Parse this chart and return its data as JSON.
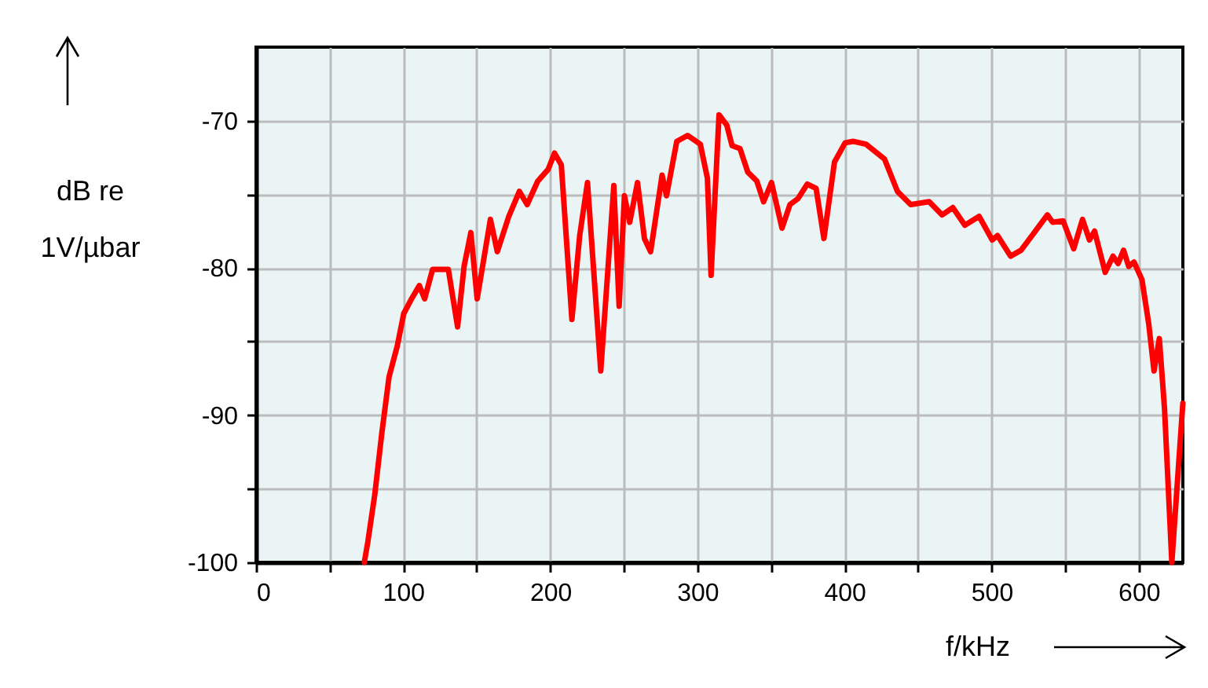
{
  "chart_data": {
    "type": "line",
    "xlabel": "f/kHz",
    "ylabel": "dB re\n1V/µbar",
    "grid": true,
    "marker": "none",
    "line_style": "solid",
    "xlim": [
      0,
      630
    ],
    "ylim": [
      -100,
      -65
    ],
    "xticks": [
      0,
      {
        "value": 50,
        "label": null
      },
      100,
      {
        "value": 150,
        "label": null
      },
      200,
      {
        "value": 250,
        "label": null
      },
      300,
      {
        "value": 350,
        "label": null
      },
      400,
      {
        "value": 450,
        "label": null
      },
      500,
      {
        "value": 550,
        "label": null
      },
      600
    ],
    "yticks": [
      -100,
      {
        "value": -95,
        "label": null
      },
      -90,
      {
        "value": -85,
        "label": null
      },
      -80,
      {
        "value": -75,
        "label": null
      },
      -70
    ],
    "series": [
      {
        "color": "#ff0000",
        "x": [
          73.6,
          76,
          80.7,
          85.4,
          90.4,
          96,
          100.4,
          105.7,
          111,
          114.6,
          120,
          130.7,
          137,
          141.4,
          146,
          150.3,
          159.3,
          164,
          171.8,
          179,
          184.3,
          191.5,
          198.6,
          202.9,
          207.5,
          214.7,
          220,
          225.3,
          234.3,
          243.2,
          246.8,
          250.4,
          254,
          259.3,
          264,
          268.2,
          276,
          279,
          286,
          293.3,
          302,
          306.8,
          309.3,
          314.7,
          320,
          323.6,
          329,
          334.3,
          340.4,
          345,
          350.4,
          357.5,
          362.9,
          368.3,
          374.7,
          380.7,
          386,
          393.2,
          400.4,
          405.8,
          414.7,
          427.2,
          436,
          445,
          457.5,
          466.4,
          473.6,
          481.8,
          491.5,
          500.4,
          504,
          512.9,
          520,
          529,
          537.9,
          541.5,
          548.6,
          555.8,
          561.8,
          566.5,
          570,
          577.2,
          582.5,
          586,
          589.7,
          593.2,
          596.8,
          602.2,
          606.8,
          610.4,
          614,
          617.5,
          622.5,
          630
        ],
        "values": [
          -100,
          -98.6,
          -95.4,
          -91.3,
          -87.4,
          -85.3,
          -83.1,
          -82.1,
          -81.2,
          -82.1,
          -80.1,
          -80.1,
          -84,
          -79.9,
          -77.6,
          -82.1,
          -76.7,
          -78.9,
          -76.5,
          -74.8,
          -75.7,
          -74.1,
          -73.3,
          -72.2,
          -73,
          -83.5,
          -77.8,
          -74.2,
          -87,
          -74.4,
          -82.6,
          -75.1,
          -76.9,
          -74.2,
          -78,
          -78.9,
          -73.7,
          -75.1,
          -71.4,
          -71,
          -71.6,
          -73.9,
          -80.5,
          -69.6,
          -70.3,
          -71.7,
          -71.9,
          -73.5,
          -74.1,
          -75.5,
          -74.2,
          -77.3,
          -75.7,
          -75.3,
          -74.3,
          -74.6,
          -78,
          -72.8,
          -71.5,
          -71.4,
          -71.6,
          -72.6,
          -74.8,
          -75.7,
          -75.5,
          -76.4,
          -75.9,
          -77.1,
          -76.5,
          -78.1,
          -77.8,
          -79.2,
          -78.8,
          -77.6,
          -76.4,
          -76.9,
          -76.8,
          -78.7,
          -76.7,
          -78.1,
          -77.5,
          -80.3,
          -79.2,
          -79.7,
          -78.8,
          -79.9,
          -79.6,
          -80.8,
          -83.8,
          -87,
          -84.8,
          -89.5,
          -100,
          -89.2
        ]
      }
    ]
  }
}
